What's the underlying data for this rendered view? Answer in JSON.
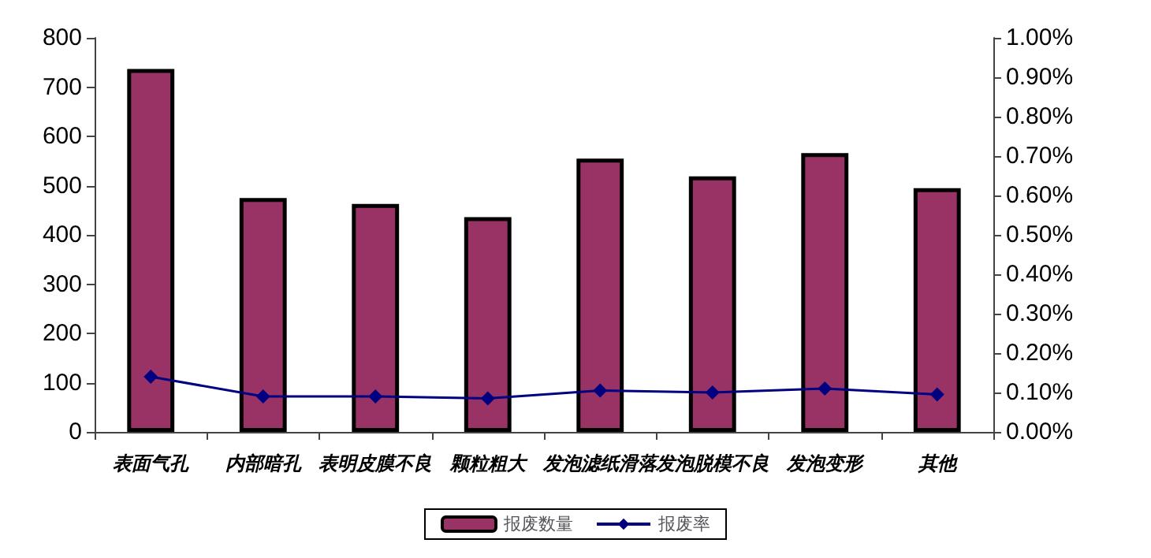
{
  "chart_data": {
    "type": "bar",
    "categories": [
      "表面气孔",
      "内部暗孔",
      "表明皮膜不良",
      "颗粒粗大",
      "发泡滤纸滑落",
      "发泡脱模不良",
      "发泡变形",
      "其他"
    ],
    "series": [
      {
        "name": "报废数量",
        "color": "#993366",
        "values": [
          737,
          475,
          463,
          436,
          555,
          519,
          566,
          495
        ]
      },
      {
        "name": "报废率",
        "type": "line",
        "axis": "y2",
        "color": "#000080",
        "marker": "diamond",
        "values": [
          0.14,
          0.09,
          0.09,
          0.085,
          0.105,
          0.1,
          0.11,
          0.095
        ]
      }
    ],
    "ylim": [
      0,
      800
    ],
    "yticks": [
      0,
      100,
      200,
      300,
      400,
      500,
      600,
      700,
      800
    ],
    "y2lim": [
      0,
      1
    ],
    "y2ticks": [
      {
        "value": 0,
        "label": "0.00%"
      },
      {
        "value": 0.1,
        "label": "0.10%"
      },
      {
        "value": 0.2,
        "label": "0.20%"
      },
      {
        "value": 0.3,
        "label": "0.30%"
      },
      {
        "value": 0.4,
        "label": "0.40%"
      },
      {
        "value": 0.5,
        "label": "0.50%"
      },
      {
        "value": 0.6,
        "label": "0.60%"
      },
      {
        "value": 0.7,
        "label": "0.70%"
      },
      {
        "value": 0.8,
        "label": "0.80%"
      },
      {
        "value": 0.9,
        "label": "0.90%"
      },
      {
        "value": 1,
        "label": "1.00%"
      }
    ],
    "grid": false,
    "legend": "bottom"
  }
}
